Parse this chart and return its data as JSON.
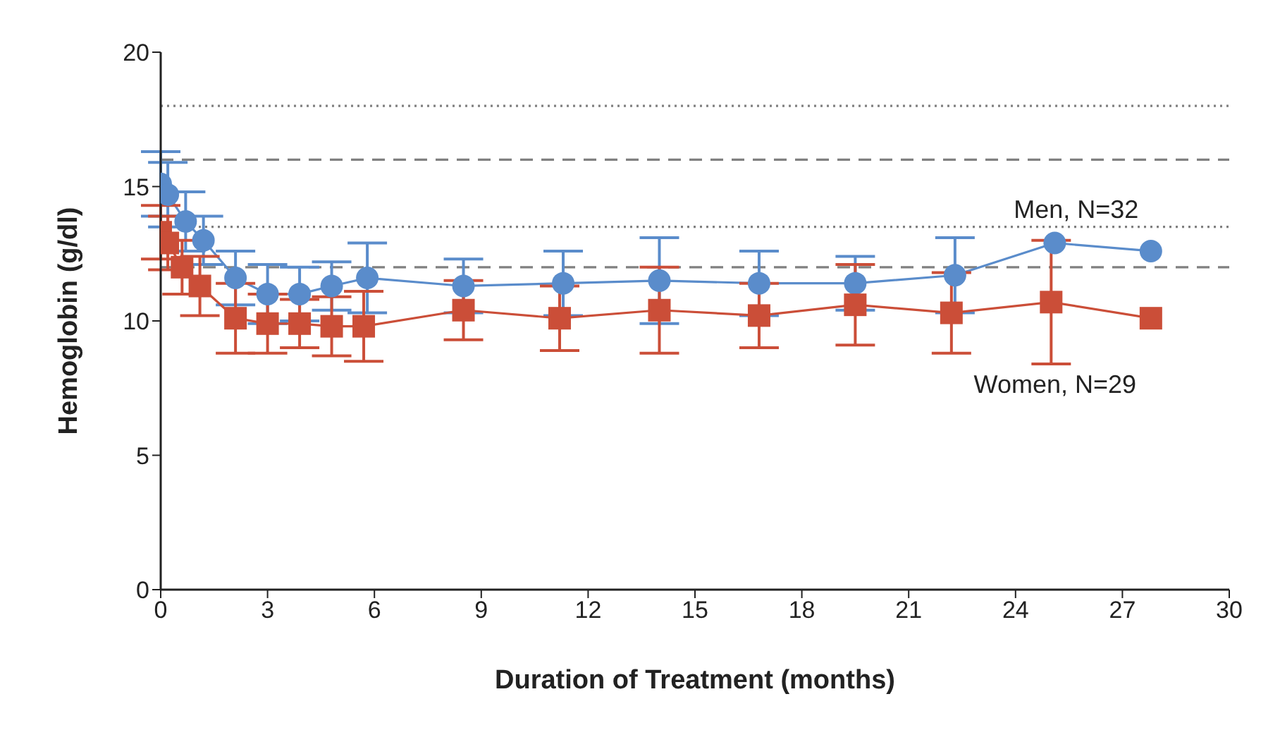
{
  "chart_data": {
    "type": "line",
    "xlabel": "Duration of Treatment (months)",
    "ylabel": "Hemoglobin (g/dl)",
    "xlim": [
      0,
      30
    ],
    "xticks": [
      0,
      3,
      6,
      9,
      12,
      15,
      18,
      21,
      24,
      27,
      30
    ],
    "ylim": [
      0,
      20
    ],
    "yticks": [
      0,
      5,
      10,
      15,
      20
    ],
    "line_style": "solid",
    "series": [
      {
        "name": "Men, N=32",
        "color": "#5a8ccb",
        "marker": "circle",
        "x": [
          0,
          0.2,
          0.7,
          1.2,
          2.1,
          3.0,
          3.9,
          4.8,
          5.8,
          8.5,
          11.3,
          14.0,
          16.8,
          19.5,
          22.3,
          25.1,
          27.8
        ],
        "values": [
          15.1,
          14.7,
          13.7,
          13.0,
          11.6,
          11.0,
          11.0,
          11.3,
          11.6,
          11.3,
          11.4,
          11.5,
          11.4,
          11.4,
          11.7,
          12.9,
          12.6
        ],
        "errors": [
          1.2,
          1.2,
          1.1,
          0.9,
          1.0,
          1.1,
          1.0,
          0.9,
          1.3,
          1.0,
          1.2,
          1.6,
          1.2,
          1.0,
          1.4,
          null,
          null
        ]
      },
      {
        "name": "Women, N=29",
        "color": "#cb4e38",
        "marker": "square",
        "x": [
          0,
          0.2,
          0.6,
          1.1,
          2.1,
          3.0,
          3.9,
          4.8,
          5.7,
          8.5,
          11.2,
          14.0,
          16.8,
          19.5,
          22.2,
          25.0,
          27.8
        ],
        "values": [
          13.3,
          12.9,
          12.0,
          11.3,
          10.1,
          9.9,
          9.9,
          9.8,
          9.8,
          10.4,
          10.1,
          10.4,
          10.2,
          10.6,
          10.3,
          10.7,
          10.1
        ],
        "errors": [
          1.0,
          1.0,
          1.0,
          1.1,
          1.3,
          1.1,
          0.9,
          1.1,
          1.3,
          1.1,
          1.2,
          1.6,
          1.2,
          1.5,
          1.5,
          2.3,
          null
        ]
      }
    ],
    "ref_lines": [
      {
        "axis": "y",
        "value": 18,
        "color": "#808080",
        "line_style": "dotted"
      },
      {
        "axis": "y",
        "value": 16,
        "color": "#808080",
        "line_style": "dashed"
      },
      {
        "axis": "y",
        "value": 13.5,
        "color": "#808080",
        "line_style": "dotted"
      },
      {
        "axis": "y",
        "value": 12,
        "color": "#808080",
        "line_style": "dashed"
      }
    ]
  }
}
